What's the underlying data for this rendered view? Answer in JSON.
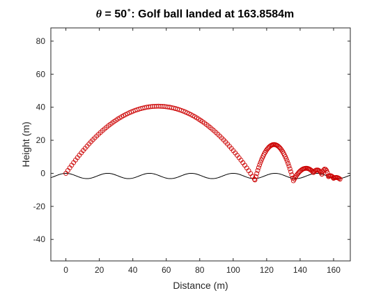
{
  "figure": {
    "title": {
      "theta_symbol": "θ",
      "equals_value": " = 50",
      "degree": "∘",
      "rest": ": Golf ball landed at 163.8584m"
    }
  },
  "chart_data": {
    "type": "scatter",
    "xlabel": "Distance (m)",
    "ylabel": "Height (m)",
    "xlim": [
      -9,
      170
    ],
    "ylim": [
      -53,
      88
    ],
    "xticks": [
      0,
      20,
      40,
      60,
      80,
      100,
      120,
      140,
      160
    ],
    "yticks": [
      -40,
      -20,
      0,
      20,
      40,
      60,
      80
    ],
    "grid": false,
    "legend": "none",
    "colors": {
      "trajectory": "#cc0000",
      "ground": "#000000",
      "axes": "#262626"
    },
    "ground": {
      "amplitude": 1.6,
      "period": 25,
      "offset": -1.6
    },
    "series": [
      {
        "style": "red-circles",
        "segments": [
          {
            "x_start": 0,
            "x_end": 113,
            "peak_x": 62,
            "peak_y": 40,
            "y_start": 0,
            "y_end": -4,
            "step": 1.15
          },
          {
            "x_start": 113,
            "x_end": 136,
            "peak_x": 126,
            "peak_y": 17,
            "y_start": -4,
            "y_end": -4.5,
            "step": 0.55
          },
          {
            "x_start": 136,
            "x_end": 148,
            "peak_x": 143,
            "peak_y": 3,
            "y_start": -4.5,
            "y_end": 0.5,
            "step": 0.55
          },
          {
            "x_start": 148,
            "x_end": 153,
            "peak_x": 150.5,
            "peak_y": 2,
            "y_start": 0.5,
            "y_end": -0.5,
            "step": 0.55
          },
          {
            "x_start": 153,
            "x_end": 157,
            "peak_x": 155,
            "peak_y": 2.5,
            "y_start": -0.5,
            "y_end": -2,
            "step": 0.55
          },
          {
            "x_start": 157,
            "x_end": 160,
            "peak_x": 158.5,
            "peak_y": -1.5,
            "y_start": -2,
            "y_end": -3,
            "step": 0.55
          },
          {
            "x_start": 160,
            "x_end": 163.9,
            "peak_x": 161.5,
            "peak_y": -2.5,
            "y_start": -3,
            "y_end": -3.6,
            "step": 0.55
          }
        ]
      }
    ]
  }
}
